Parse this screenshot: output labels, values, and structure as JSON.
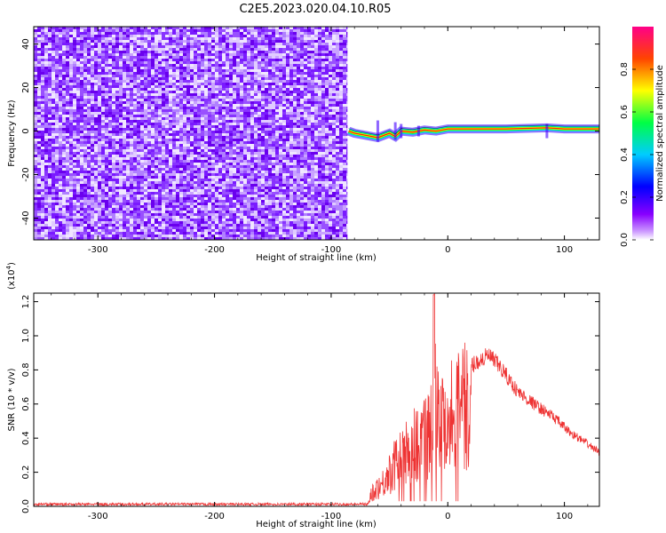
{
  "title": "C2E5.2023.020.04.10.R05",
  "chart_data": [
    {
      "type": "heatmap",
      "name": "spectrogram",
      "xlabel": "Height of straight line (km)",
      "ylabel": "Frequency (Hz)",
      "xlim": [
        -355,
        130
      ],
      "ylim": [
        -50,
        48
      ],
      "x_ticks": [
        -300,
        -200,
        -100,
        0,
        100
      ],
      "y_ticks": [
        -40,
        -20,
        0,
        20,
        40
      ],
      "colorbar": {
        "label": "Normalized spectral amplitude",
        "range": [
          0.0,
          1.0
        ],
        "ticks": [
          "0.0",
          "0.2",
          "0.4",
          "0.6",
          "0.8"
        ],
        "colors": [
          "#ffffff",
          "#8800ff",
          "#0000ff",
          "#00ffff",
          "#00ff00",
          "#ffff00",
          "#ff0000",
          "#ff0088"
        ]
      },
      "noise_region_x": [
        -355,
        -86
      ],
      "signal_track": [
        {
          "x": -85,
          "f": 0.0
        },
        {
          "x": -80,
          "f": -1.0
        },
        {
          "x": -70,
          "f": -2.0
        },
        {
          "x": -60,
          "f": -3.0
        },
        {
          "x": -50,
          "f": -1.0
        },
        {
          "x": -45,
          "f": -2.5
        },
        {
          "x": -40,
          "f": 0.0
        },
        {
          "x": -30,
          "f": -0.5
        },
        {
          "x": -20,
          "f": 0.5
        },
        {
          "x": -10,
          "f": 0.0
        },
        {
          "x": 0,
          "f": 1.0
        },
        {
          "x": 20,
          "f": 1.0
        },
        {
          "x": 50,
          "f": 1.0
        },
        {
          "x": 85,
          "f": 1.5
        },
        {
          "x": 100,
          "f": 1.0
        },
        {
          "x": 130,
          "f": 1.0
        }
      ]
    },
    {
      "type": "line",
      "name": "snr",
      "xlabel": "Height of straight line (km)",
      "ylabel": "SNR (10 * v/v)",
      "y_multiplier": "(x10",
      "y_multiplier_exp": "4",
      "y_multiplier_close": ")",
      "xlim": [
        -355,
        130
      ],
      "ylim": [
        0.0,
        1.25
      ],
      "x_ticks": [
        -300,
        -200,
        -100,
        0,
        100
      ],
      "y_ticks": [
        "0.0",
        "0.2",
        "0.4",
        "0.6",
        "0.8",
        "1.0",
        "1.2"
      ],
      "color": "#ee3333",
      "series_outline": [
        {
          "x": -355,
          "y": 0.01
        },
        {
          "x": -70,
          "y": 0.01
        },
        {
          "x": -65,
          "y": 0.12
        },
        {
          "x": -55,
          "y": 0.2
        },
        {
          "x": -45,
          "y": 0.35
        },
        {
          "x": -35,
          "y": 0.45
        },
        {
          "x": -25,
          "y": 0.55
        },
        {
          "x": -15,
          "y": 0.62
        },
        {
          "x": -12,
          "y": 1.24
        },
        {
          "x": -5,
          "y": 0.7
        },
        {
          "x": 0,
          "y": 0.75
        },
        {
          "x": 10,
          "y": 0.82
        },
        {
          "x": 25,
          "y": 0.88
        },
        {
          "x": 35,
          "y": 0.92
        },
        {
          "x": 45,
          "y": 0.85
        },
        {
          "x": 60,
          "y": 0.7
        },
        {
          "x": 75,
          "y": 0.62
        },
        {
          "x": 90,
          "y": 0.55
        },
        {
          "x": 105,
          "y": 0.45
        },
        {
          "x": 120,
          "y": 0.38
        },
        {
          "x": 130,
          "y": 0.33
        }
      ]
    }
  ]
}
